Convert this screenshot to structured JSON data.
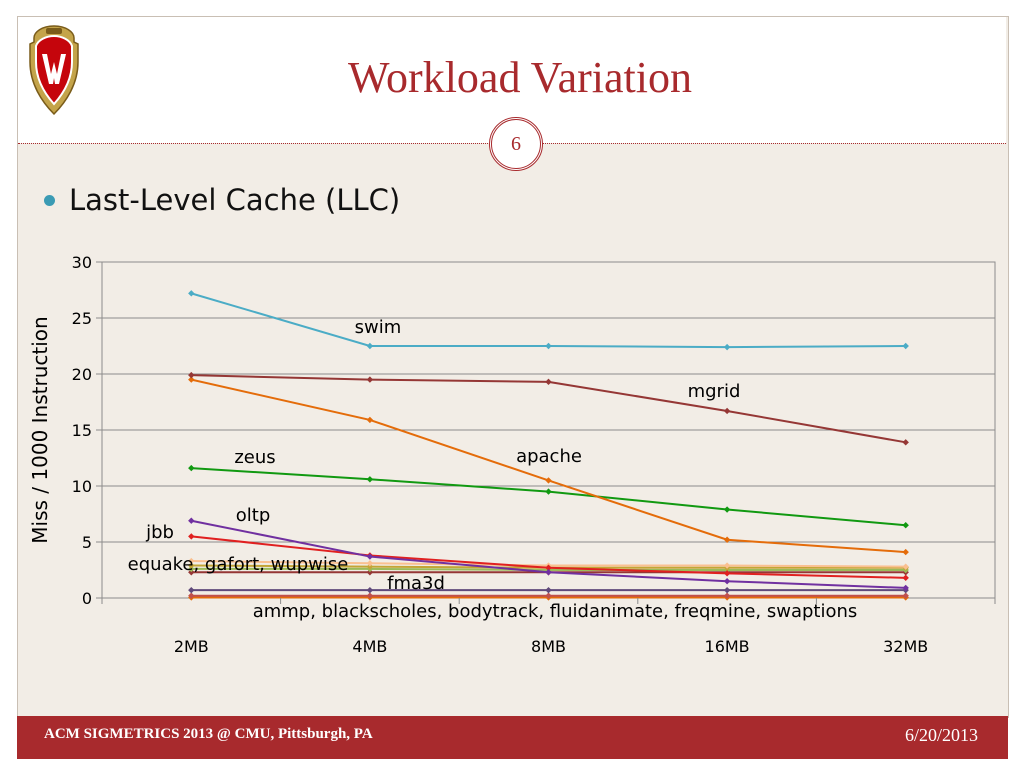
{
  "slide": {
    "title": "Workload Variation",
    "number": "6",
    "bullet": "Last-Level Cache (LLC)",
    "footer_left": "ACM SIGMETRICS 2013 @ CMU, Pittsburgh, PA",
    "footer_right": "6/20/2013",
    "logo": "wisconsin-w-crest-icon"
  },
  "colors": {
    "accent": "#a82a2d",
    "bullet": "#3b9bb4",
    "background": "#f2ede6"
  },
  "chart_data": {
    "type": "line",
    "title": "",
    "xlabel": "",
    "ylabel": "Miss / 1000 Instruction",
    "categories": [
      "2MB",
      "4MB",
      "8MB",
      "16MB",
      "32MB"
    ],
    "ylim": [
      0,
      30
    ],
    "yticks": [
      0,
      5,
      10,
      15,
      20,
      25,
      30
    ],
    "grid": true,
    "legend": "none",
    "series": [
      {
        "name": "swim",
        "color": "#4bacc6",
        "values": [
          27.2,
          22.5,
          22.5,
          22.4,
          22.5
        ]
      },
      {
        "name": "mgrid",
        "color": "#953735",
        "values": [
          19.9,
          19.5,
          19.3,
          16.7,
          13.9
        ]
      },
      {
        "name": "apache",
        "color": "#e46c0a",
        "values": [
          19.5,
          15.9,
          10.5,
          5.2,
          4.1
        ]
      },
      {
        "name": "zeus",
        "color": "#119911",
        "values": [
          11.6,
          10.6,
          9.5,
          7.9,
          6.5
        ]
      },
      {
        "name": "oltp",
        "color": "#7030a0",
        "values": [
          6.9,
          3.7,
          2.3,
          1.5,
          0.9
        ]
      },
      {
        "color": "#e02020",
        "values": [
          5.5,
          3.8,
          2.7,
          2.2,
          1.8
        ]
      },
      {
        "color": "#fac090",
        "values": [
          3.3,
          3.1,
          2.9,
          2.9,
          2.8
        ]
      },
      {
        "color": "#c3a536",
        "values": [
          2.9,
          2.8,
          2.7,
          2.7,
          2.7
        ]
      },
      {
        "color": "#9bbb59",
        "values": [
          2.6,
          2.6,
          2.5,
          2.5,
          2.5
        ]
      },
      {
        "color": "#953735",
        "values": [
          2.3,
          2.3,
          2.3,
          2.3,
          2.3
        ]
      },
      {
        "color": "#604a7b",
        "values": [
          0.7,
          0.7,
          0.7,
          0.7,
          0.7
        ]
      },
      {
        "color": "#c0504d",
        "values": [
          0.2,
          0.2,
          0.2,
          0.2,
          0.2
        ]
      },
      {
        "color": "#e46c0a",
        "values": [
          0.05,
          0.05,
          0.05,
          0.05,
          0.05
        ]
      }
    ],
    "annotations": [
      {
        "text": "swim"
      },
      {
        "text": "mgrid"
      },
      {
        "text": "apache"
      },
      {
        "text": "zeus"
      },
      {
        "text": "oltp"
      },
      {
        "text": "jbb"
      },
      {
        "text": "equake, gafort, wupwise"
      },
      {
        "text": "fma3d"
      },
      {
        "text": "ammp, blackscholes, bodytrack, fluidanimate, freqmine, swaptions"
      }
    ]
  }
}
